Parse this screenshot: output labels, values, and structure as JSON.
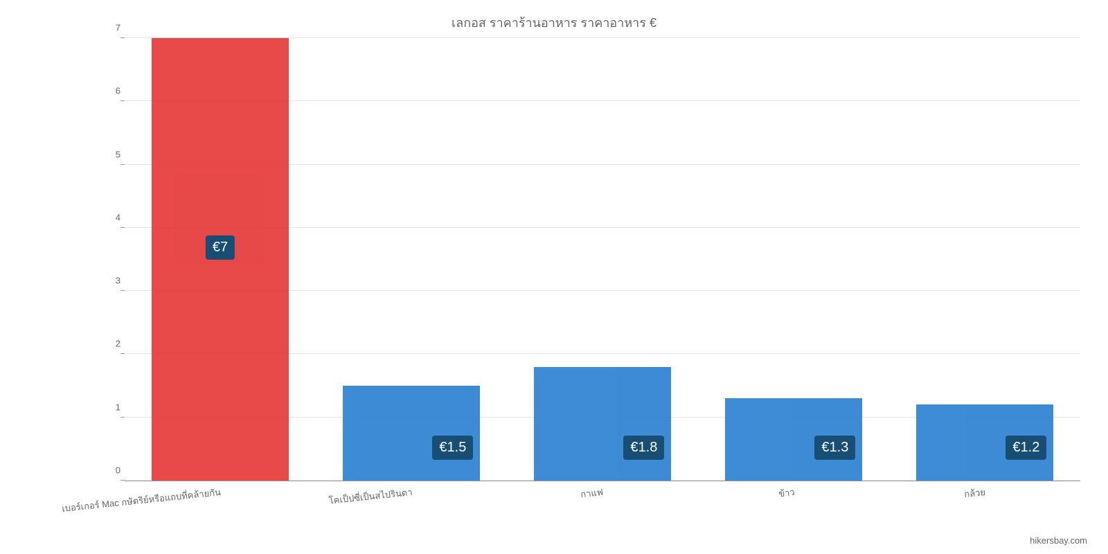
{
  "chart": {
    "type": "bar",
    "title": "เลกอส ราคาร้านอาหาร ราคาอาหาร €",
    "title_color": "#666666",
    "title_fontsize": 18,
    "background_color": "#ffffff",
    "grid_color": "#e6e6e6",
    "axis_color": "#999999",
    "text_color": "#666666",
    "ylim": [
      0,
      7
    ],
    "ytick_step": 1,
    "yticks": [
      0,
      1,
      2,
      3,
      4,
      5,
      6,
      7
    ],
    "bar_width": 0.72,
    "label_badge_bg": "#003a66",
    "label_badge_text": "#ffffff",
    "label_fontsize": 20,
    "categories": [
      "เบอร์เกอร์ Mac กษัตริย์หรือแถบที่คล้ายกัน",
      "โคเป็ปซี่เป็นสไปรินดา",
      "กาแฟ",
      "ข้าว",
      "กล้วย"
    ],
    "values": [
      7,
      1.5,
      1.8,
      1.3,
      1.2
    ],
    "value_labels": [
      "€7",
      "€1.5",
      "€1.8",
      "€1.3",
      "€1.2"
    ],
    "bar_colors": [
      "#e53535",
      "#2a7fd1",
      "#2a7fd1",
      "#2a7fd1",
      "#2a7fd1"
    ]
  },
  "attribution": "hikersbay.com"
}
